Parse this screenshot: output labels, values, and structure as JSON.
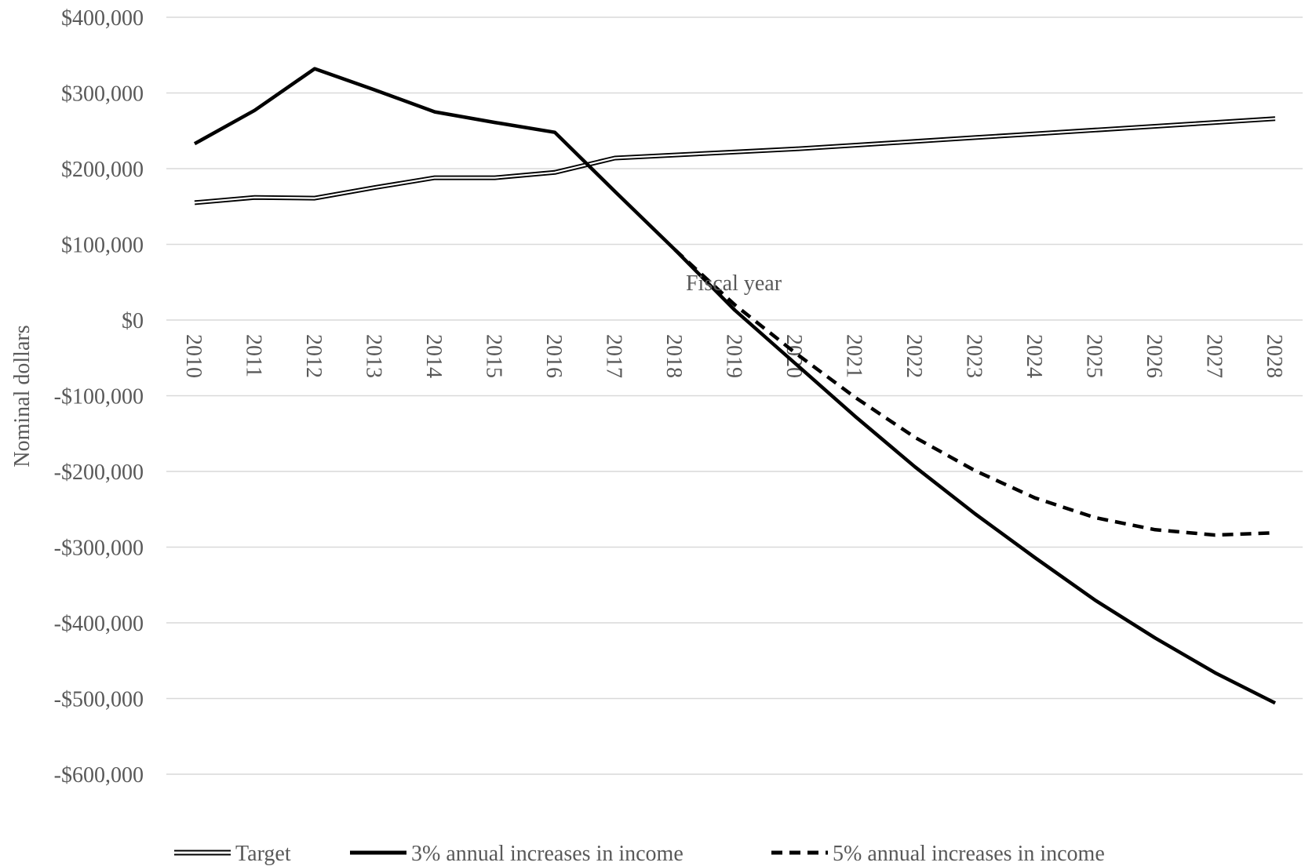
{
  "chart_data": {
    "type": "line",
    "title": "",
    "xlabel": "Fiscal year",
    "ylabel": "Nominal dollars",
    "x": [
      2010,
      2011,
      2012,
      2013,
      2014,
      2015,
      2016,
      2017,
      2018,
      2019,
      2020,
      2021,
      2022,
      2023,
      2024,
      2025,
      2026,
      2027,
      2028
    ],
    "x_tick_labels": [
      "2010",
      "2011",
      "2012",
      "2013",
      "2014",
      "2015",
      "2016",
      "2017",
      "2018",
      "2019",
      "2020",
      "2021",
      "2022",
      "2023",
      "2024",
      "2025",
      "2026",
      "2027",
      "2028"
    ],
    "ylim": [
      -600000,
      400000
    ],
    "y_ticks": [
      400000,
      300000,
      200000,
      100000,
      0,
      -100000,
      -200000,
      -300000,
      -400000,
      -500000,
      -600000
    ],
    "y_tick_labels": [
      "$400,000",
      "$300,000",
      "$200,000",
      "$100,000",
      "$0",
      "-$100,000",
      "-$200,000",
      "-$300,000",
      "-$400,000",
      "-$500,000",
      "-$600,000"
    ],
    "grid": true,
    "legend_position": "bottom",
    "series": [
      {
        "name": "Target",
        "style": "double",
        "color": "#000000",
        "values": [
          155000,
          162000,
          161000,
          175000,
          188000,
          188000,
          195000,
          214000,
          218000,
          222000,
          226000,
          231000,
          236000,
          241000,
          246000,
          251000,
          256000,
          261000,
          266000
        ]
      },
      {
        "name": "3% annual increases in income",
        "style": "solid",
        "color": "#000000",
        "values": [
          233000,
          277000,
          332000,
          304000,
          275000,
          261000,
          248000,
          170000,
          93000,
          13000,
          -57000,
          -127000,
          -194000,
          -256000,
          -314000,
          -370000,
          -420000,
          -466000,
          -506000
        ]
      },
      {
        "name": "5% annual increases in income",
        "style": "dashed",
        "color": "#000000",
        "values": [
          null,
          null,
          null,
          null,
          null,
          null,
          null,
          null,
          93000,
          20000,
          -43000,
          -102000,
          -155000,
          -199000,
          -235000,
          -261000,
          -277000,
          -284000,
          -281000
        ]
      }
    ]
  }
}
